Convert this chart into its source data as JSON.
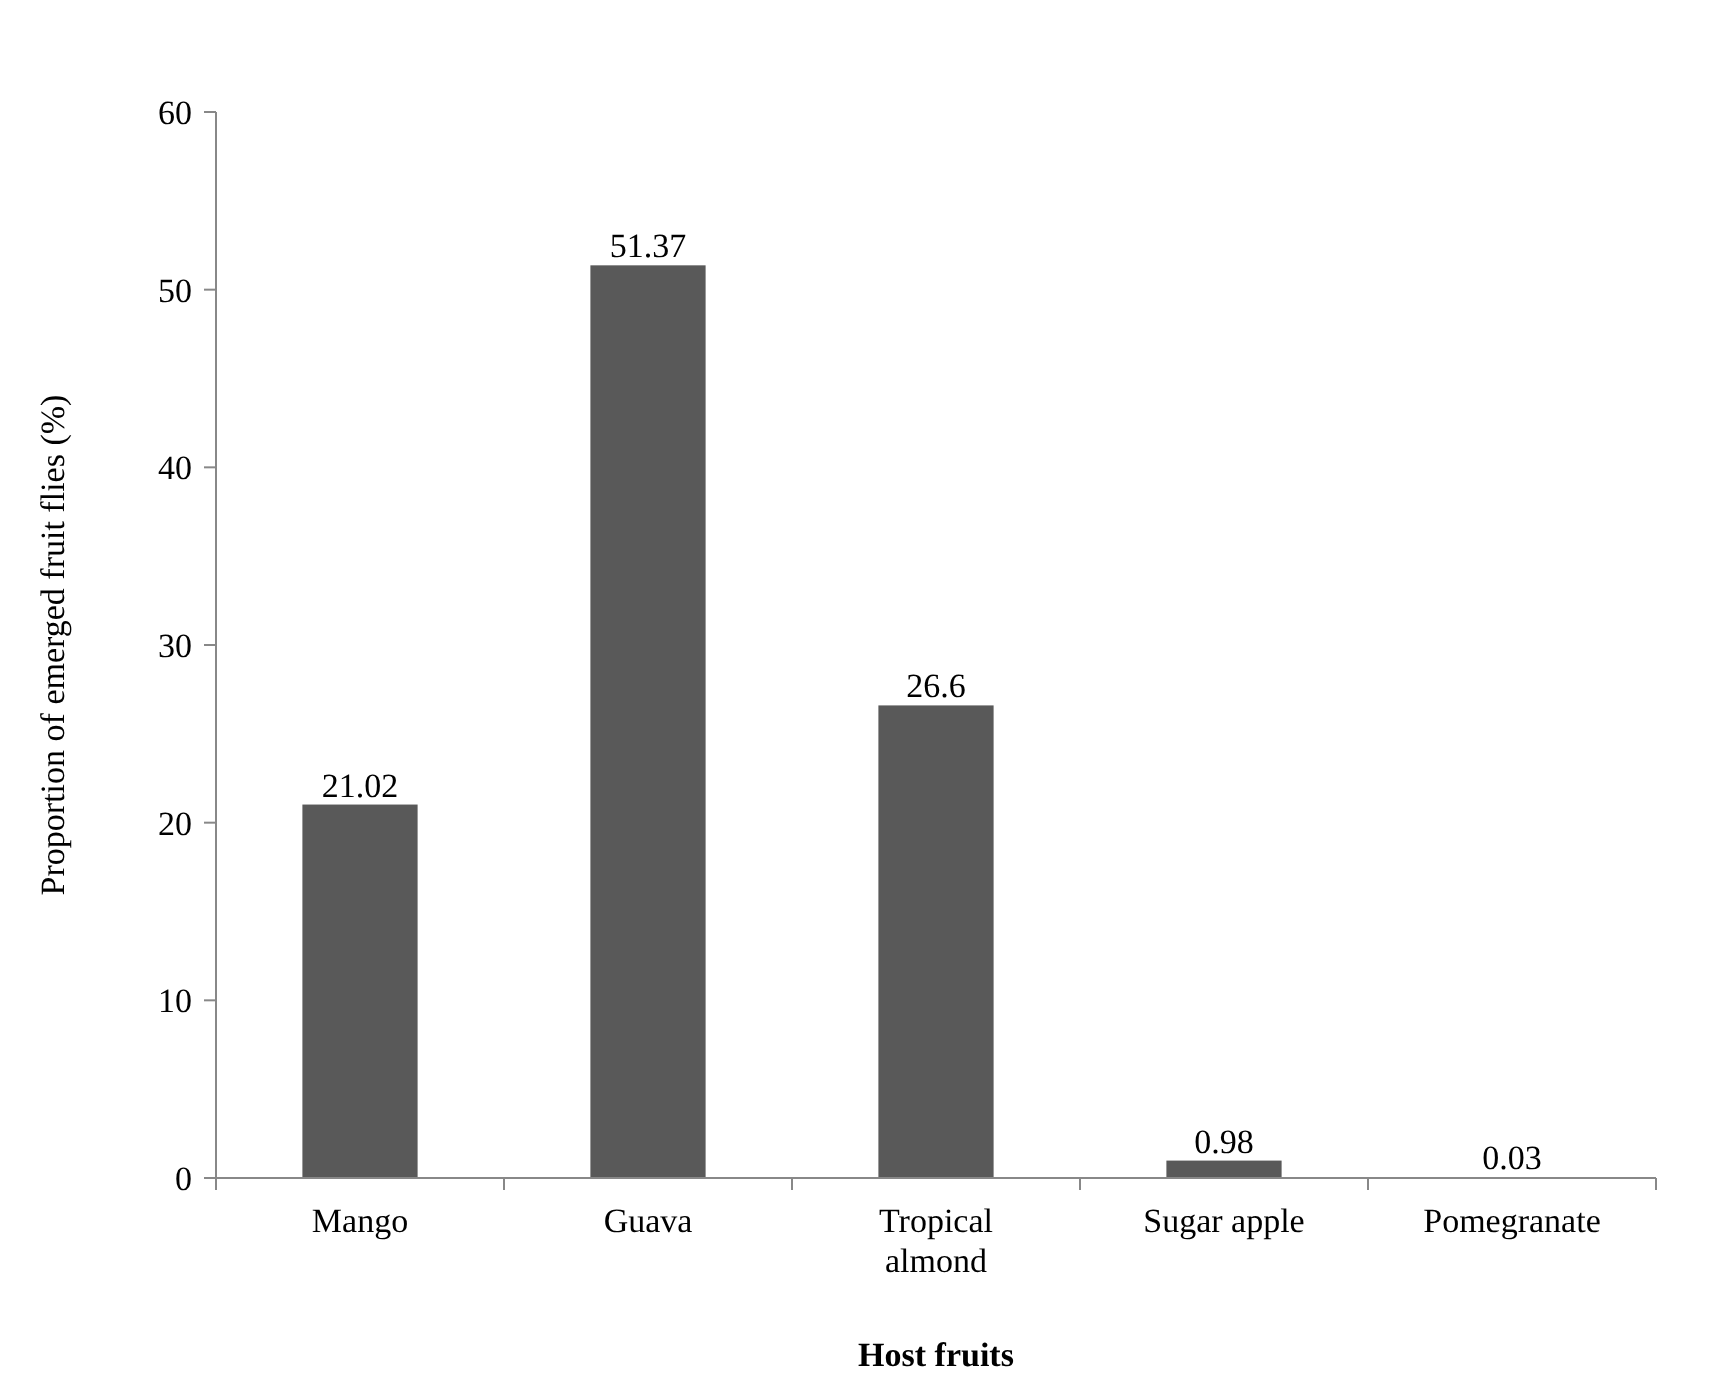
{
  "chart_data": {
    "type": "bar",
    "xlabel": "Host fruits",
    "ylabel": "Proportion of emerged fruit flies (%)",
    "categories": [
      "Mango",
      "Guava",
      "Tropical almond",
      "Sugar apple",
      "Pomegranate"
    ],
    "values": [
      21.02,
      51.37,
      26.6,
      0.98,
      0.03
    ],
    "color": "#595959",
    "ylim": [
      0,
      60
    ],
    "yticks": [
      0,
      10,
      20,
      30,
      40,
      50,
      60
    ],
    "grid": false,
    "data_labels": true
  }
}
